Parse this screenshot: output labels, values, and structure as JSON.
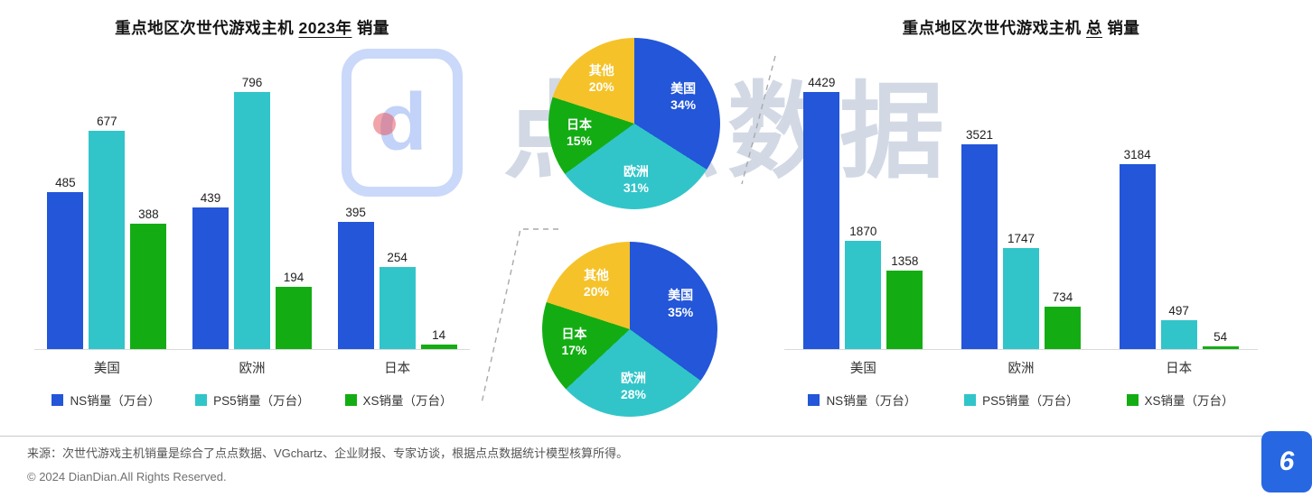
{
  "page_number": "6",
  "watermark": {
    "logo_letter": "d",
    "text": "点点数据"
  },
  "footer": {
    "source": "来源：次世代游戏主机销量是综合了点点数据、VGchartz、企业财报、专家访谈，根据点点数据统计模型核算所得。",
    "copyright": "© 2024 DianDian.All Rights Reserved."
  },
  "colors": {
    "ns": "#2356d8",
    "ps5": "#31c5c9",
    "xs": "#13ad13",
    "other": "#f5c229",
    "badge": "#2767e2"
  },
  "chart_data": [
    {
      "id": "bar-2023",
      "type": "bar",
      "title": {
        "prefix": "重点地区次世代游戏主机 ",
        "em": "2023年",
        "suffix": " 销量"
      },
      "categories": [
        "美国",
        "欧洲",
        "日本"
      ],
      "ymax": 796,
      "grid": false,
      "legend_position": "bottom",
      "series": [
        {
          "name": "NS销量（万台）",
          "color_key": "ns",
          "values": [
            485,
            439,
            395
          ]
        },
        {
          "name": "PS5销量（万台）",
          "color_key": "ps5",
          "values": [
            677,
            796,
            254
          ]
        },
        {
          "name": "XS销量（万台）",
          "color_key": "xs",
          "values": [
            388,
            194,
            14
          ]
        }
      ]
    },
    {
      "id": "bar-total",
      "type": "bar",
      "title": {
        "prefix": "重点地区次世代游戏主机 ",
        "em": "总",
        "suffix": " 销量"
      },
      "categories": [
        "美国",
        "欧洲",
        "日本"
      ],
      "ymax": 4429,
      "grid": false,
      "legend_position": "bottom",
      "series": [
        {
          "name": "NS销量（万台）",
          "color_key": "ns",
          "values": [
            4429,
            3521,
            3184
          ]
        },
        {
          "name": "PS5销量（万台）",
          "color_key": "ps5",
          "values": [
            1870,
            1747,
            497
          ]
        },
        {
          "name": "XS销量（万台）",
          "color_key": "xs",
          "values": [
            1358,
            734,
            54
          ]
        }
      ]
    },
    {
      "id": "pie-2023",
      "type": "pie",
      "slices": [
        {
          "label": "美国",
          "pct": 34,
          "color_key": "ns"
        },
        {
          "label": "欧洲",
          "pct": 31,
          "color_key": "ps5"
        },
        {
          "label": "日本",
          "pct": 15,
          "color_key": "xs"
        },
        {
          "label": "其他",
          "pct": 20,
          "color_key": "other"
        }
      ]
    },
    {
      "id": "pie-total",
      "type": "pie",
      "slices": [
        {
          "label": "美国",
          "pct": 35,
          "color_key": "ns"
        },
        {
          "label": "欧洲",
          "pct": 28,
          "color_key": "ps5"
        },
        {
          "label": "日本",
          "pct": 17,
          "color_key": "xs"
        },
        {
          "label": "其他",
          "pct": 20,
          "color_key": "other"
        }
      ]
    }
  ]
}
